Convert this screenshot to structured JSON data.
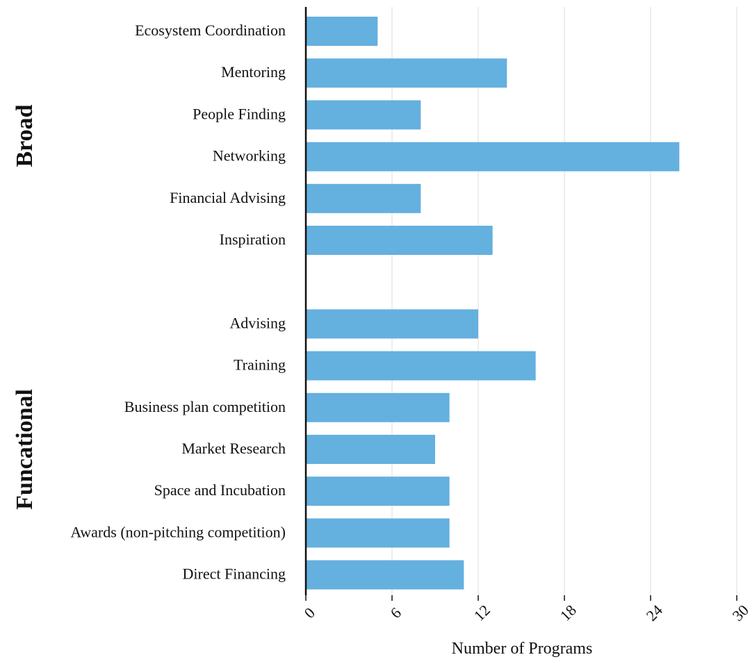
{
  "chart_data": {
    "type": "bar",
    "orientation": "horizontal",
    "xlabel": "Number of Programs",
    "ylabel": "",
    "xlim": [
      0,
      30
    ],
    "xticks": [
      "0",
      "6",
      "12",
      "18",
      "24",
      "30"
    ],
    "grid": "vertical lines",
    "bar_color": "#64b0df",
    "groups": [
      {
        "name": "Broad",
        "categories": [
          "Ecosystem Coordination",
          "Mentoring",
          "People Finding",
          "Networking",
          "Financial Advising",
          "Inspiration"
        ],
        "values": [
          5,
          14,
          8,
          26,
          8,
          13
        ]
      },
      {
        "name": "Funcational",
        "categories": [
          "Advising",
          "Training",
          "Business plan competition",
          "Market Research",
          "Space and Incubation",
          "Awards (non-pitching competition)",
          "Direct Financing"
        ],
        "values": [
          12,
          16,
          10,
          9,
          10,
          10,
          11
        ]
      }
    ]
  }
}
